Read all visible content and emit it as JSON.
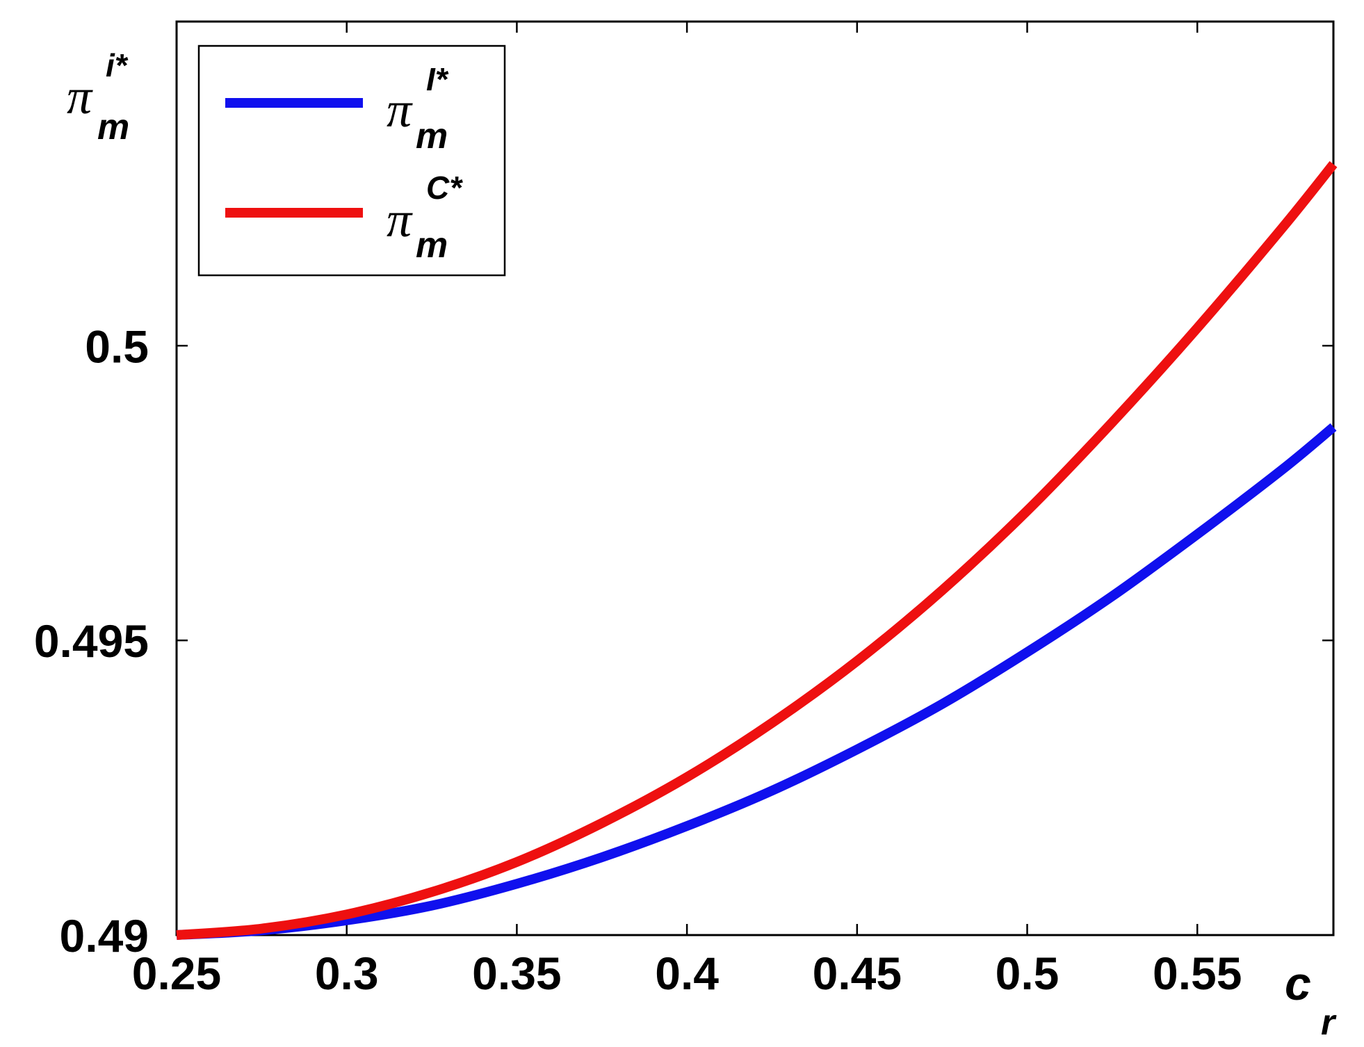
{
  "chart_data": {
    "type": "line",
    "xlabel": {
      "symbol": "c",
      "subscript": "r"
    },
    "ylabel": {
      "symbol": "π",
      "superscript": "i*",
      "subscript": "m"
    },
    "xlim": [
      0.25,
      0.59
    ],
    "ylim": [
      0.49,
      0.5055
    ],
    "x_ticks": [
      0.25,
      0.3,
      0.35,
      0.4,
      0.45,
      0.5,
      0.55
    ],
    "x_tick_labels": [
      "0.25",
      "0.3",
      "0.35",
      "0.4",
      "0.45",
      "0.5",
      "0.55"
    ],
    "y_ticks": [
      0.49,
      0.495,
      0.5
    ],
    "y_tick_labels": [
      "0.49",
      "0.495",
      "0.5"
    ],
    "grid": false,
    "legend_position": "top-left",
    "x": [
      0.25,
      0.275,
      0.3,
      0.325,
      0.35,
      0.375,
      0.4,
      0.425,
      0.45,
      0.475,
      0.5,
      0.525,
      0.55,
      0.575,
      0.59
    ],
    "series": [
      {
        "symbol": "π",
        "superscript": "I*",
        "subscript": "m",
        "color": "#1010ee",
        "values": [
          0.49,
          0.49008,
          0.49025,
          0.4905,
          0.49087,
          0.49132,
          0.49185,
          0.49245,
          0.49315,
          0.49392,
          0.4948,
          0.49575,
          0.4968,
          0.4979,
          0.49862
        ]
      },
      {
        "symbol": "π",
        "superscript": "C*",
        "subscript": "m",
        "color": "#ee1010",
        "values": [
          0.49,
          0.49011,
          0.49035,
          0.49073,
          0.49124,
          0.4919,
          0.49268,
          0.4936,
          0.49465,
          0.49585,
          0.4972,
          0.4987,
          0.5003,
          0.502,
          0.50308
        ]
      }
    ]
  }
}
